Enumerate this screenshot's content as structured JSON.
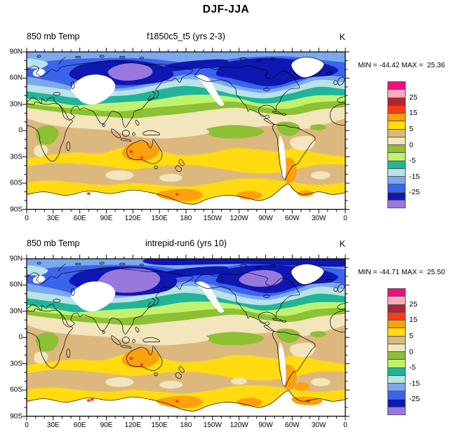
{
  "title": "DJF-JJA",
  "axes": {
    "lon_labels": [
      "0",
      "30E",
      "60E",
      "90E",
      "120E",
      "150E",
      "180",
      "150W",
      "120W",
      "90W",
      "60W",
      "30W",
      "0"
    ],
    "lat_labels": [
      "90N",
      "60N",
      "30N",
      "0",
      "30S",
      "60S",
      "90S"
    ]
  },
  "palette": {
    "magenta": "#F01082",
    "pink": "#FFAABC",
    "darkred": "#B2232D",
    "orangered": "#FB3B16",
    "orange": "#FCA00D",
    "yellow": "#FFDB0F",
    "tan": "#DDB87E",
    "cream": "#F3E5BC",
    "olive": "#8DC033",
    "lightgreen": "#C1F26E",
    "teal": "#20B598",
    "palecyan": "#B9E3E5",
    "cornflower": "#7CA8F0",
    "royal": "#3C63EB",
    "navy": "#0F17B2",
    "lavender": "#9878DC",
    "masked_white": "#FFFFFF",
    "coast": "#000000",
    "frame": "#000000"
  },
  "colorbar": {
    "colors_top_to_bottom": [
      "magenta",
      "pink",
      "darkred",
      "orangered",
      "orange",
      "yellow",
      "tan",
      "cream",
      "olive",
      "lightgreen",
      "teal",
      "palecyan",
      "cornflower",
      "royal",
      "navy",
      "lavender"
    ],
    "labels": [
      "25",
      "15",
      "5",
      "0",
      "-5",
      "-15",
      "-25"
    ],
    "label_boundaries": [
      2,
      4,
      6,
      8,
      10,
      12,
      14
    ],
    "n_boxes": 16
  },
  "panels": [
    {
      "variable_label": "850 mb Temp",
      "run_label": "f1850c5_t5 (yrs 2-3)",
      "unit_label": "K",
      "minmax": "MIN = -44.42 MAX =  25.36"
    },
    {
      "variable_label": "850 mb Temp",
      "run_label": "intrepid-run6 (yrs 10)",
      "unit_label": "K",
      "minmax": "MIN = -44.71 MAX =  25.50"
    }
  ],
  "chart_data": [
    {
      "type": "filled_contour_map",
      "suptitle": "DJF-JJA",
      "title_left": "850 mb Temp",
      "title_center": "f1850c5_t5 (yrs 2-3)",
      "units": "K",
      "min": -44.42,
      "max": 25.36,
      "projection": "global cylindrical equidistant, centered on 180",
      "lon_tick_labels": [
        "0",
        "30E",
        "60E",
        "90E",
        "120E",
        "150E",
        "180",
        "150W",
        "120W",
        "90W",
        "60W",
        "30W",
        "0"
      ],
      "lat_tick_labels": [
        "90N",
        "60N",
        "30N",
        "0",
        "30S",
        "60S",
        "90S"
      ],
      "contour_levels": [
        -30,
        -25,
        -20,
        -15,
        -10,
        -5,
        -2,
        0,
        2,
        5,
        10,
        15,
        20,
        25,
        30
      ],
      "labeled_colorbar_levels": [
        25,
        15,
        5,
        0,
        -5,
        -15,
        -25
      ],
      "fill_colors_low_to_high": [
        "#9878DC",
        "#0F17B2",
        "#3C63EB",
        "#7CA8F0",
        "#B9E3E5",
        "#20B598",
        "#C1F26E",
        "#8DC033",
        "#F3E5BC",
        "#DDB87E",
        "#FFDB0F",
        "#FCA00D",
        "#FB3B16",
        "#B2232D",
        "#FFAABC",
        "#F01082"
      ],
      "masked_regions_white": [
        "Greenland",
        "central Asia / Tibet",
        "western North America cordillera",
        "Andes",
        "Antarctica interior",
        "Scandinavian mountains"
      ],
      "pattern_summary": [
        "Strong negative values (below -30 K, deep blue) over Siberia and northeastern Canada",
        "Below -40 K (purple) core over eastern Siberia",
        "Zonal bands: blue/cyan 40-90N, teal/green 20-40N, cream/tan in tropics",
        "Positive 5-10 K (yellow) across southern mid-latitudes, 2-5 K (tan) band near 45-60S",
        "10-15 K (orange) over Australia, Patagonia and along the Antarctic coast"
      ]
    },
    {
      "type": "filled_contour_map",
      "suptitle": "DJF-JJA",
      "title_left": "850 mb Temp",
      "title_center": "intrepid-run6 (yrs 10)",
      "units": "K",
      "min": -44.71,
      "max": 25.5,
      "projection": "global cylindrical equidistant, centered on 180",
      "lon_tick_labels": [
        "0",
        "30E",
        "60E",
        "90E",
        "120E",
        "150E",
        "180",
        "150W",
        "120W",
        "90W",
        "60W",
        "30W",
        "0"
      ],
      "lat_tick_labels": [
        "90N",
        "60N",
        "30N",
        "0",
        "30S",
        "60S",
        "90S"
      ],
      "contour_levels": [
        -30,
        -25,
        -20,
        -15,
        -10,
        -5,
        -2,
        0,
        2,
        5,
        10,
        15,
        20,
        25,
        30
      ],
      "labeled_colorbar_levels": [
        25,
        15,
        5,
        0,
        -5,
        -15,
        -25
      ],
      "fill_colors_low_to_high": [
        "#9878DC",
        "#0F17B2",
        "#3C63EB",
        "#7CA8F0",
        "#B9E3E5",
        "#20B598",
        "#C1F26E",
        "#8DC033",
        "#F3E5BC",
        "#DDB87E",
        "#FFDB0F",
        "#FCA00D",
        "#FB3B16",
        "#B2232D",
        "#FFAABC",
        "#F01082"
      ],
      "masked_regions_white": [
        "Greenland",
        "central Asia / Tibet",
        "western North America cordillera",
        "Andes",
        "Antarctica interior",
        "Scandinavian mountains"
      ],
      "pattern_summary": [
        "Like upper panel but colder NH continents: below -40 K (purple) cores over both eastern Siberia and central Canada",
        "Navy band reaches the Arctic map edge",
        "Slightly stronger orange (10-15 K) fringes along the Antarctic coast and South Atlantic"
      ]
    }
  ]
}
